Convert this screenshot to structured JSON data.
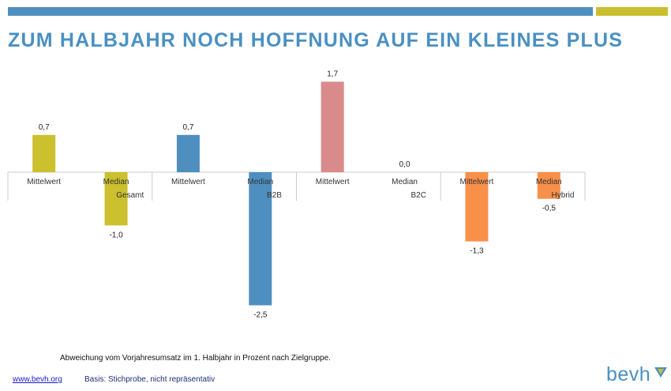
{
  "header": {
    "title": "ZUM HALBJAHR NOCH HOFFNUNG AUF EIN KLEINES PLUS",
    "bar_colors": [
      "#4f8fbf",
      "#c9bf2e"
    ]
  },
  "chart_data": {
    "type": "bar",
    "groups": [
      "Gesamt",
      "B2B",
      "B2C",
      "Hybrid"
    ],
    "categories": [
      "Mittelwert",
      "Median"
    ],
    "series": [
      {
        "values": [
          0.7,
          -1.0
        ],
        "color": "#cbc02d"
      },
      {
        "values": [
          0.7,
          -2.5
        ],
        "color": "#4f8fbf"
      },
      {
        "values": [
          1.7,
          0.0
        ],
        "color": "#d98b8b"
      },
      {
        "values": [
          -1.3,
          -0.5
        ],
        "color": "#f8904a"
      }
    ],
    "data_labels": [
      [
        "0,7",
        "-1,0"
      ],
      [
        "0,7",
        "-2,5"
      ],
      [
        "1,7",
        "0,0"
      ],
      [
        "-1,3",
        "-0,5"
      ]
    ],
    "ylim": [
      -2.5,
      1.7
    ],
    "grid": false,
    "legend": "none"
  },
  "footer": {
    "caption": "Abweichung vom Vorjahresumsatz im 1. Halbjahr in Prozent nach Zielgruppe.",
    "link": "www.bevh.org",
    "source": "Basis: Stichprobe, nicht repräsentativ",
    "logo_text": "bevh",
    "logo_icon": "bevh-logo-mark-icon"
  }
}
